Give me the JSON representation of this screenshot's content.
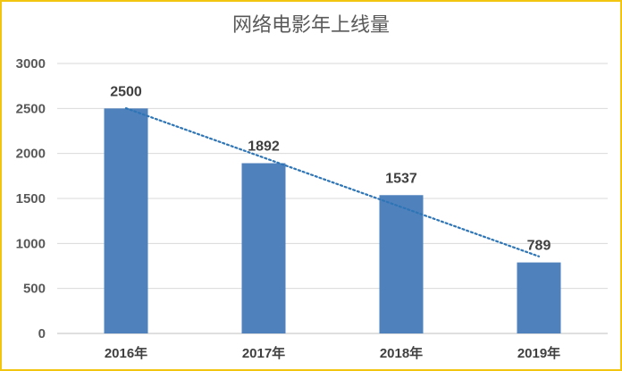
{
  "chart_data": {
    "type": "bar",
    "title": "网络电影年上线量",
    "categories": [
      "2016年",
      "2017年",
      "2018年",
      "2019年"
    ],
    "values": [
      2500,
      1892,
      1537,
      789
    ],
    "data_labels": [
      "2500",
      "1892",
      "1537",
      "789"
    ],
    "ylim": [
      0,
      3000
    ],
    "yticks": [
      "0",
      "500",
      "1000",
      "1500",
      "2000",
      "2500",
      "3000"
    ],
    "xlabel": "",
    "ylabel": "",
    "grid": true,
    "legend": "none",
    "trendline": "linear-dotted",
    "colors": {
      "bar": "#4f81bd",
      "trendline": "#2e75b6",
      "grid": "#d9d9d9",
      "frame": "#f2c511"
    }
  }
}
